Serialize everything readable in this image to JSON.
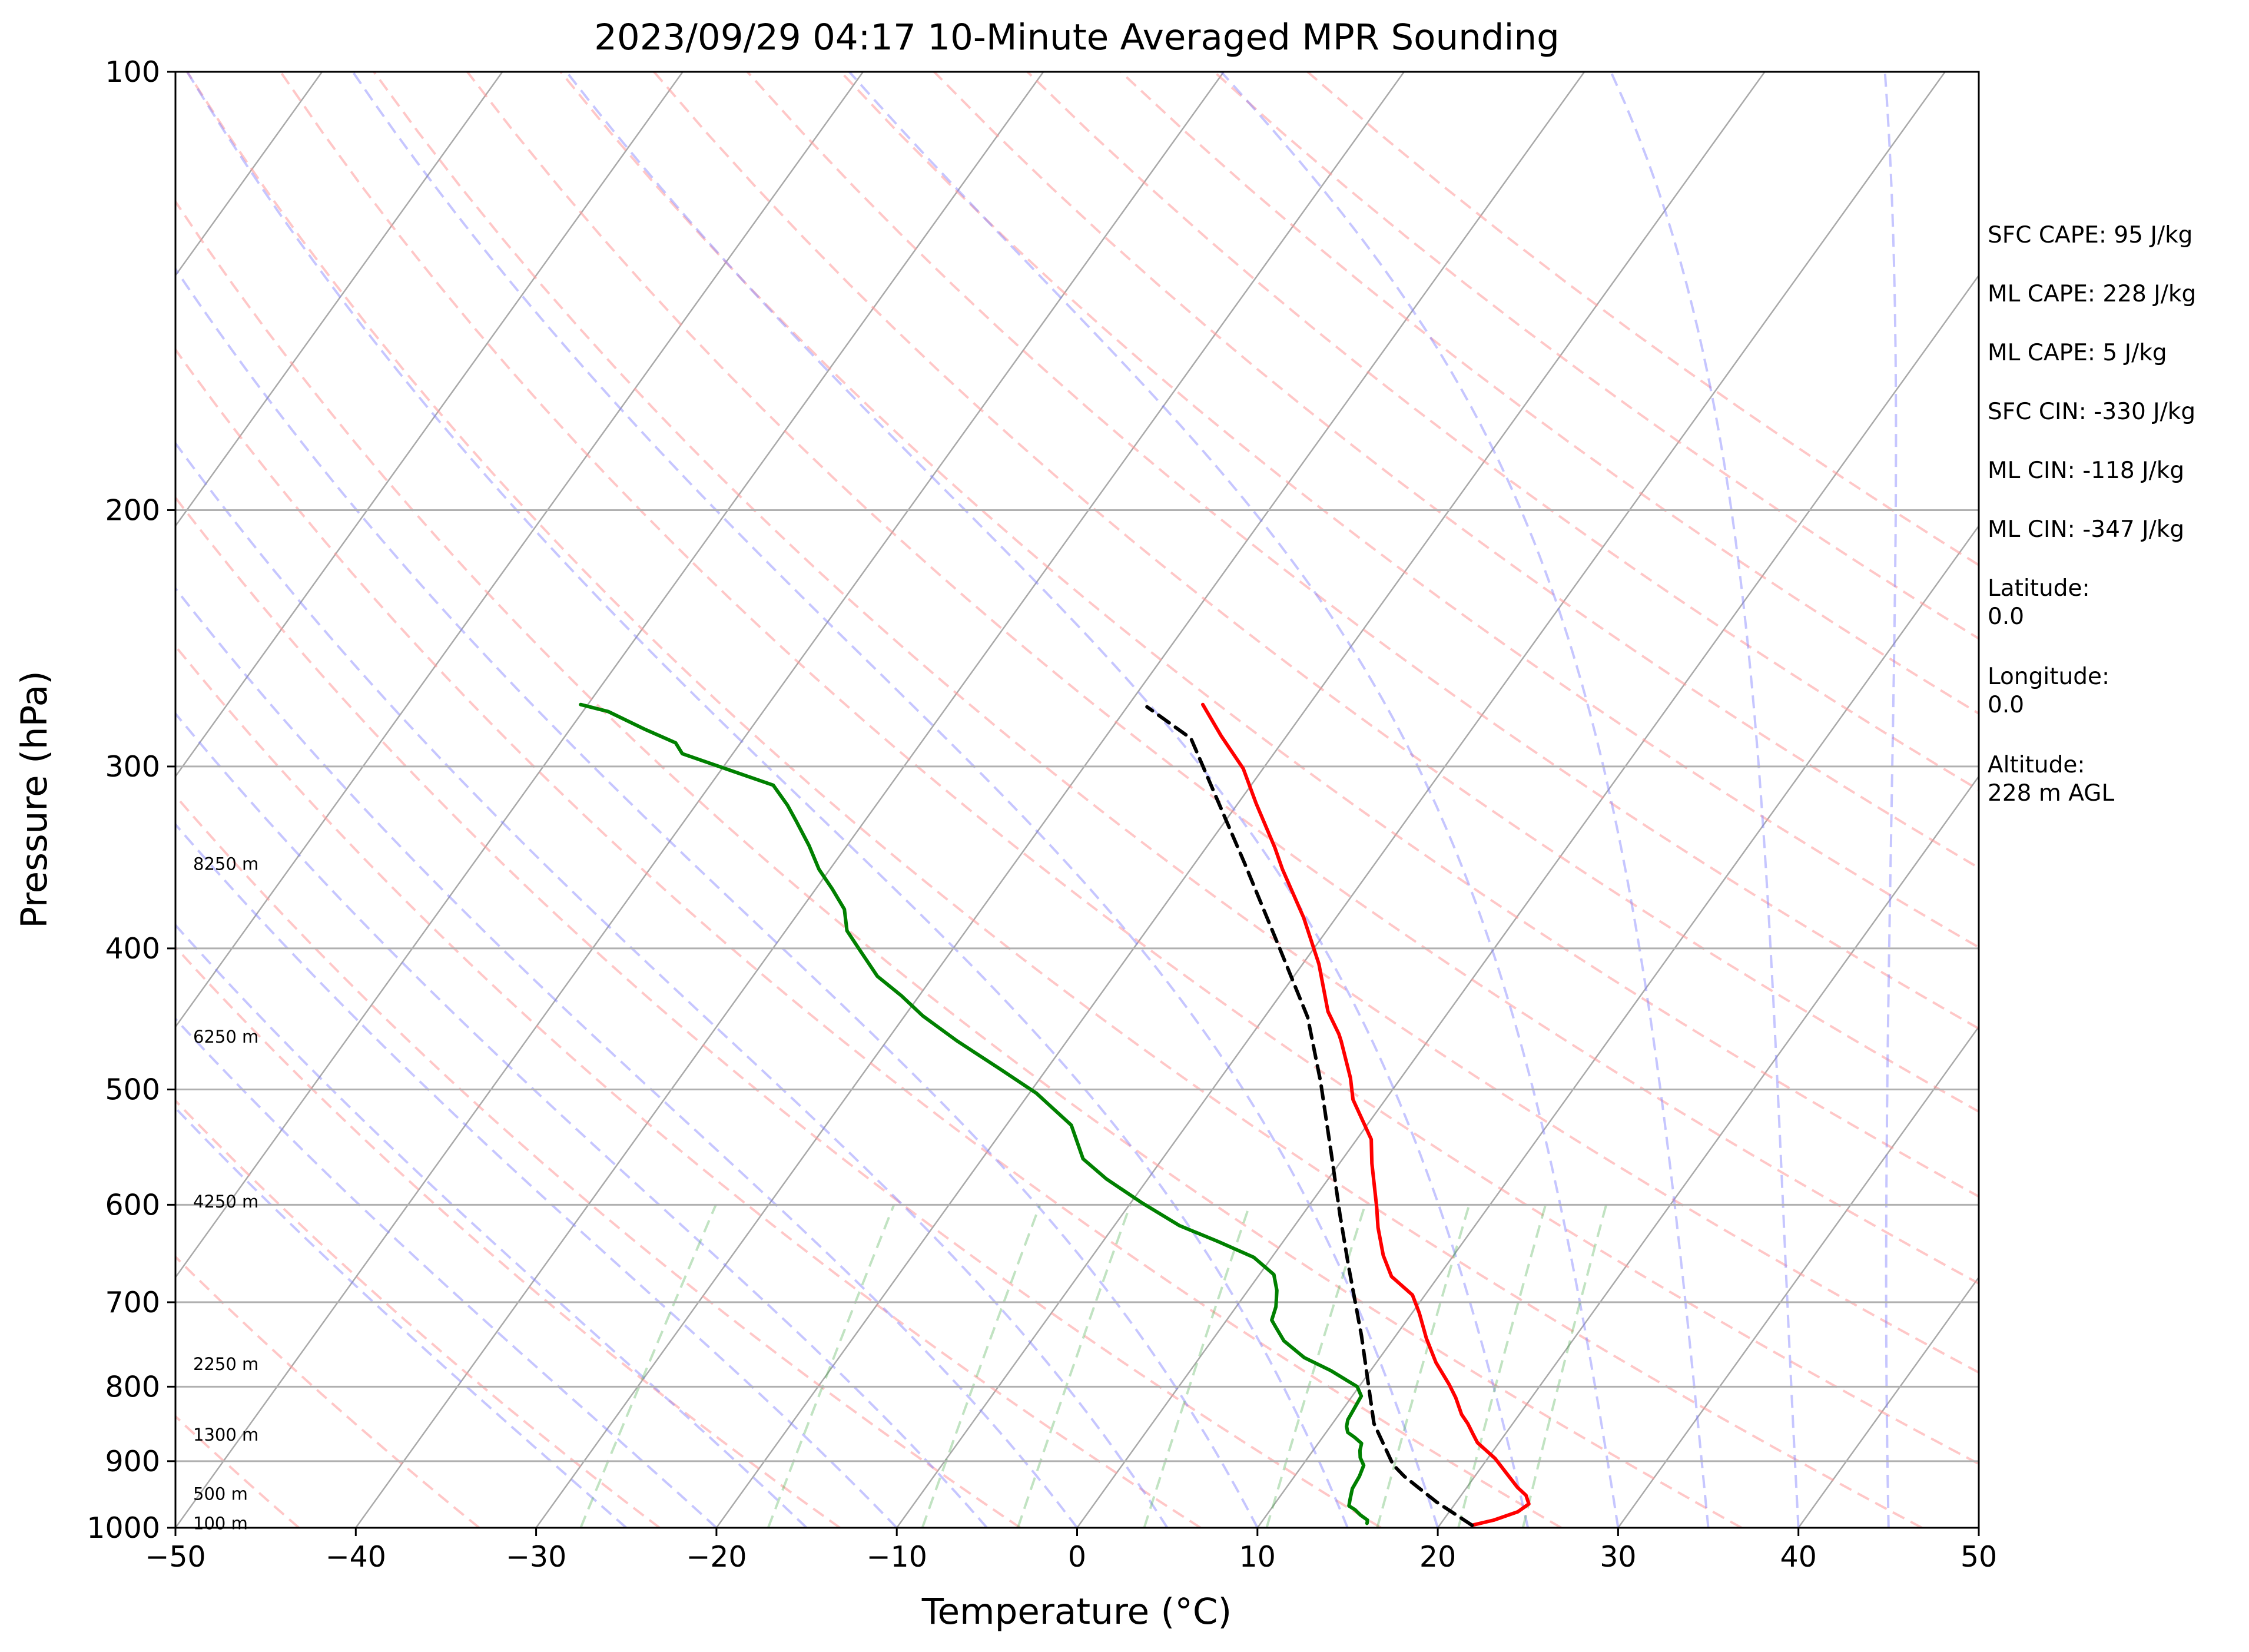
{
  "chart_data": {
    "type": "skew-t",
    "title": "2023/09/29 04:17 10-Minute Averaged MPR Sounding",
    "xlabel": "Temperature (°C)",
    "ylabel": "Pressure (hPa)",
    "xlim": [
      -50,
      50
    ],
    "ylim": [
      1000,
      100
    ],
    "y_scale": "log",
    "x_ticks": [
      "−50",
      "−40",
      "−30",
      "−20",
      "−10",
      "0",
      "10",
      "20",
      "30",
      "40",
      "50"
    ],
    "y_ticks": [
      "100",
      "200",
      "300",
      "400",
      "500",
      "600",
      "700",
      "800",
      "900",
      "1000"
    ],
    "background_lines": [
      "isotherms",
      "dry-adiabats",
      "moist-adiabats",
      "mixing-ratio-lines"
    ],
    "height_labels": [
      {
        "label": "100 m",
        "p": 993
      },
      {
        "label": "500 m",
        "p": 948
      },
      {
        "label": "1300 m",
        "p": 863
      },
      {
        "label": "2250 m",
        "p": 772
      },
      {
        "label": "4250 m",
        "p": 597
      },
      {
        "label": "6250 m",
        "p": 460
      },
      {
        "label": "8250 m",
        "p": 350
      }
    ],
    "series": [
      {
        "key": "temperature",
        "color": "#ff0000",
        "points": [
          [
            21.8,
            996
          ],
          [
            22.8,
            988
          ],
          [
            23.8,
            975
          ],
          [
            24.1,
            963
          ],
          [
            23.6,
            950
          ],
          [
            22.8,
            938
          ],
          [
            21.5,
            915
          ],
          [
            20.4,
            896
          ],
          [
            18.8,
            874
          ],
          [
            18.2,
            862
          ],
          [
            17.5,
            848
          ],
          [
            16.8,
            836
          ],
          [
            15.8,
            814
          ],
          [
            14.9,
            797
          ],
          [
            13.3,
            770
          ],
          [
            11.8,
            741
          ],
          [
            10.4,
            712
          ],
          [
            9.3,
            692
          ],
          [
            7.4,
            672
          ],
          [
            6.1,
            650
          ],
          [
            4.7,
            622
          ],
          [
            3.8,
            602
          ],
          [
            1.8,
            562
          ],
          [
            0.8,
            541
          ],
          [
            -1.8,
            508
          ],
          [
            -2.8,
            491
          ],
          [
            -4.8,
            463
          ],
          [
            -5.2,
            458
          ],
          [
            -6.7,
            442
          ],
          [
            -9.1,
            410
          ],
          [
            -11.8,
            381
          ],
          [
            -14.9,
            353
          ],
          [
            -16.2,
            341
          ],
          [
            -19.0,
            318
          ],
          [
            -21.1,
            301
          ],
          [
            -23.6,
            286
          ],
          [
            -25.9,
            272
          ]
        ]
      },
      {
        "key": "dewpoint",
        "color": "#008000",
        "points": [
          [
            15.9,
            993
          ],
          [
            15.8,
            988
          ],
          [
            15.2,
            980
          ],
          [
            14.7,
            972
          ],
          [
            14.2,
            966
          ],
          [
            14.0,
            956
          ],
          [
            13.7,
            940
          ],
          [
            13.6,
            922
          ],
          [
            13.4,
            906
          ],
          [
            12.9,
            895
          ],
          [
            12.6,
            885
          ],
          [
            12.4,
            875
          ],
          [
            11.8,
            867
          ],
          [
            11.2,
            860
          ],
          [
            10.9,
            852
          ],
          [
            10.7,
            843
          ],
          [
            10.5,
            812
          ],
          [
            9.9,
            800
          ],
          [
            7.8,
            780
          ],
          [
            5.8,
            764
          ],
          [
            4.0,
            744
          ],
          [
            3.0,
            728
          ],
          [
            2.5,
            720
          ],
          [
            2.2,
            705
          ],
          [
            1.6,
            687
          ],
          [
            0.8,
            670
          ],
          [
            -1.0,
            652
          ],
          [
            -3.6,
            636
          ],
          [
            -6.4,
            620
          ],
          [
            -9.4,
            598
          ],
          [
            -12.3,
            576
          ],
          [
            -14.4,
            558
          ],
          [
            -16.4,
            529
          ],
          [
            -19.6,
            503
          ],
          [
            -22.6,
            484
          ],
          [
            -26.1,
            463
          ],
          [
            -29.0,
            445
          ],
          [
            -31.0,
            431
          ],
          [
            -33.1,
            418
          ],
          [
            -35.0,
            402
          ],
          [
            -36.6,
            389
          ],
          [
            -37.6,
            376
          ],
          [
            -39.1,
            364
          ],
          [
            -40.6,
            353
          ],
          [
            -42.1,
            340
          ],
          [
            -43.8,
            327
          ],
          [
            -44.9,
            319
          ],
          [
            -46.5,
            309
          ],
          [
            -52.8,
            294
          ],
          [
            -53.6,
            289
          ],
          [
            -55.8,
            283
          ],
          [
            -58.6,
            275
          ],
          [
            -60.4,
            272
          ]
        ]
      },
      {
        "key": "parcel",
        "color": "#000000",
        "dashed": true,
        "points": [
          [
            21.8,
            996
          ],
          [
            18.9,
            960
          ],
          [
            16.1,
            922
          ],
          [
            15.0,
            905
          ],
          [
            12.3,
            848
          ],
          [
            8.1,
            738
          ],
          [
            4.6,
            661
          ],
          [
            2.1,
            610
          ],
          [
            -0.7,
            556
          ],
          [
            -4.3,
            494
          ],
          [
            -7.6,
            446
          ],
          [
            -11.9,
            400
          ],
          [
            -17.2,
            350
          ],
          [
            -25.2,
            287
          ],
          [
            -28.9,
            273
          ]
        ]
      }
    ]
  },
  "side_stats": [
    {
      "label": "SFC CAPE: 95 J/kg"
    },
    {
      "label": "ML CAPE: 228 J/kg"
    },
    {
      "label": "ML CAPE: 5 J/kg"
    },
    {
      "label": "SFC CIN: -330 J/kg"
    },
    {
      "label": "ML CIN: -118 J/kg"
    },
    {
      "label": "ML CIN: -347 J/kg"
    },
    {
      "label": "Latitude:",
      "value": "0.0"
    },
    {
      "label": "Longitude:",
      "value": "0.0"
    },
    {
      "label": "Altitude:",
      "value": "228 m AGL"
    }
  ]
}
